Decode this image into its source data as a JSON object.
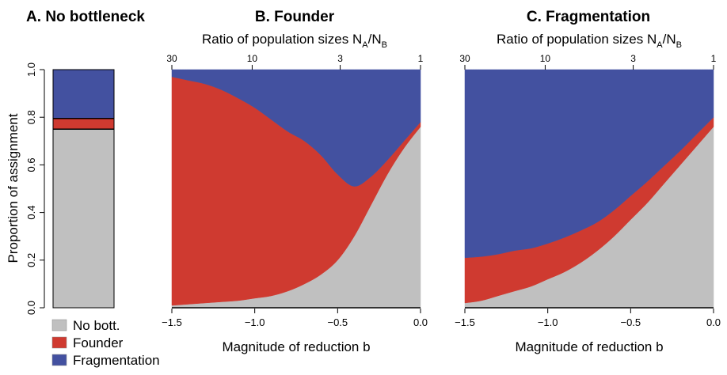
{
  "colors": {
    "none": "#c0c0c0",
    "founder": "#cf3a30",
    "frag": "#4351a0"
  },
  "ylabel": "Proportion of assignment",
  "yticks": [
    "0.0",
    "0.2",
    "0.4",
    "0.6",
    "0.8",
    "1.0"
  ],
  "legend": [
    {
      "label": "No bott.",
      "color": "#c0c0c0"
    },
    {
      "label": "Founder",
      "color": "#cf3a30"
    },
    {
      "label": "Fragmentation",
      "color": "#4351a0"
    }
  ],
  "panels": [
    {
      "title": "A. No bottleneck"
    },
    {
      "title": "B. Founder",
      "top_axis_label": "Ratio of population sizes N",
      "top_sub_a": "A",
      "top_sub_b": "B",
      "top_ticks": [
        "30",
        "10",
        "3",
        "1"
      ],
      "xlabel": "Magnitude of reduction b",
      "xticks": [
        "−1.5",
        "−1.0",
        "−0.5",
        "0.0"
      ]
    },
    {
      "title": "C. Fragmentation",
      "top_axis_label": "Ratio of population sizes N",
      "top_sub_a": "A",
      "top_sub_b": "B",
      "top_ticks": [
        "30",
        "10",
        "3",
        "1"
      ],
      "xlabel": "Magnitude of reduction b",
      "xticks": [
        "−1.5",
        "−1.0",
        "−0.5",
        "0.0"
      ]
    }
  ],
  "chart_data": [
    {
      "type": "bar",
      "title": "A. No bottleneck",
      "stacked": true,
      "ylabel": "Proportion of assignment",
      "ylim": [
        0,
        1
      ],
      "series": [
        {
          "name": "No bott.",
          "values": [
            0.75
          ]
        },
        {
          "name": "Founder",
          "values": [
            0.045
          ]
        },
        {
          "name": "Fragmentation",
          "values": [
            0.205
          ]
        }
      ]
    },
    {
      "type": "area",
      "title": "B. Founder",
      "xlabel": "Magnitude of reduction b",
      "x_top_label": "Ratio of population sizes NA/NB",
      "top_ticks": [
        30,
        10,
        3,
        1
      ],
      "xlim": [
        -1.5,
        0.0
      ],
      "ylim": [
        0,
        1
      ],
      "stacked": true,
      "x": [
        -1.5,
        -1.4,
        -1.3,
        -1.2,
        -1.1,
        -1.0,
        -0.9,
        -0.8,
        -0.7,
        -0.6,
        -0.5,
        -0.4,
        -0.3,
        -0.2,
        -0.1,
        0.0
      ],
      "series": [
        {
          "name": "No bott.",
          "values": [
            0.01,
            0.015,
            0.02,
            0.025,
            0.03,
            0.04,
            0.05,
            0.07,
            0.1,
            0.14,
            0.2,
            0.3,
            0.43,
            0.56,
            0.67,
            0.76
          ]
        },
        {
          "name": "Founder",
          "values": [
            0.96,
            0.94,
            0.92,
            0.89,
            0.85,
            0.8,
            0.74,
            0.67,
            0.6,
            0.5,
            0.36,
            0.21,
            0.12,
            0.06,
            0.03,
            0.02
          ]
        },
        {
          "name": "Fragmentation",
          "values": [
            0.03,
            0.045,
            0.06,
            0.085,
            0.12,
            0.16,
            0.21,
            0.26,
            0.3,
            0.36,
            0.44,
            0.49,
            0.45,
            0.38,
            0.3,
            0.22
          ]
        }
      ]
    },
    {
      "type": "area",
      "title": "C. Fragmentation",
      "xlabel": "Magnitude of reduction b",
      "x_top_label": "Ratio of population sizes NA/NB",
      "top_ticks": [
        30,
        10,
        3,
        1
      ],
      "xlim": [
        -1.5,
        0.0
      ],
      "ylim": [
        0,
        1
      ],
      "stacked": true,
      "x": [
        -1.5,
        -1.4,
        -1.3,
        -1.2,
        -1.1,
        -1.0,
        -0.9,
        -0.8,
        -0.7,
        -0.6,
        -0.5,
        -0.4,
        -0.3,
        -0.2,
        -0.1,
        0.0
      ],
      "series": [
        {
          "name": "No bott.",
          "values": [
            0.02,
            0.03,
            0.05,
            0.07,
            0.09,
            0.12,
            0.15,
            0.19,
            0.24,
            0.3,
            0.37,
            0.44,
            0.52,
            0.6,
            0.68,
            0.76
          ]
        },
        {
          "name": "Founder",
          "values": [
            0.19,
            0.185,
            0.175,
            0.17,
            0.16,
            0.15,
            0.145,
            0.135,
            0.12,
            0.11,
            0.1,
            0.09,
            0.075,
            0.06,
            0.05,
            0.04
          ]
        },
        {
          "name": "Fragmentation",
          "values": [
            0.79,
            0.785,
            0.775,
            0.76,
            0.75,
            0.73,
            0.705,
            0.675,
            0.64,
            0.59,
            0.53,
            0.47,
            0.405,
            0.34,
            0.27,
            0.2
          ]
        }
      ]
    }
  ]
}
